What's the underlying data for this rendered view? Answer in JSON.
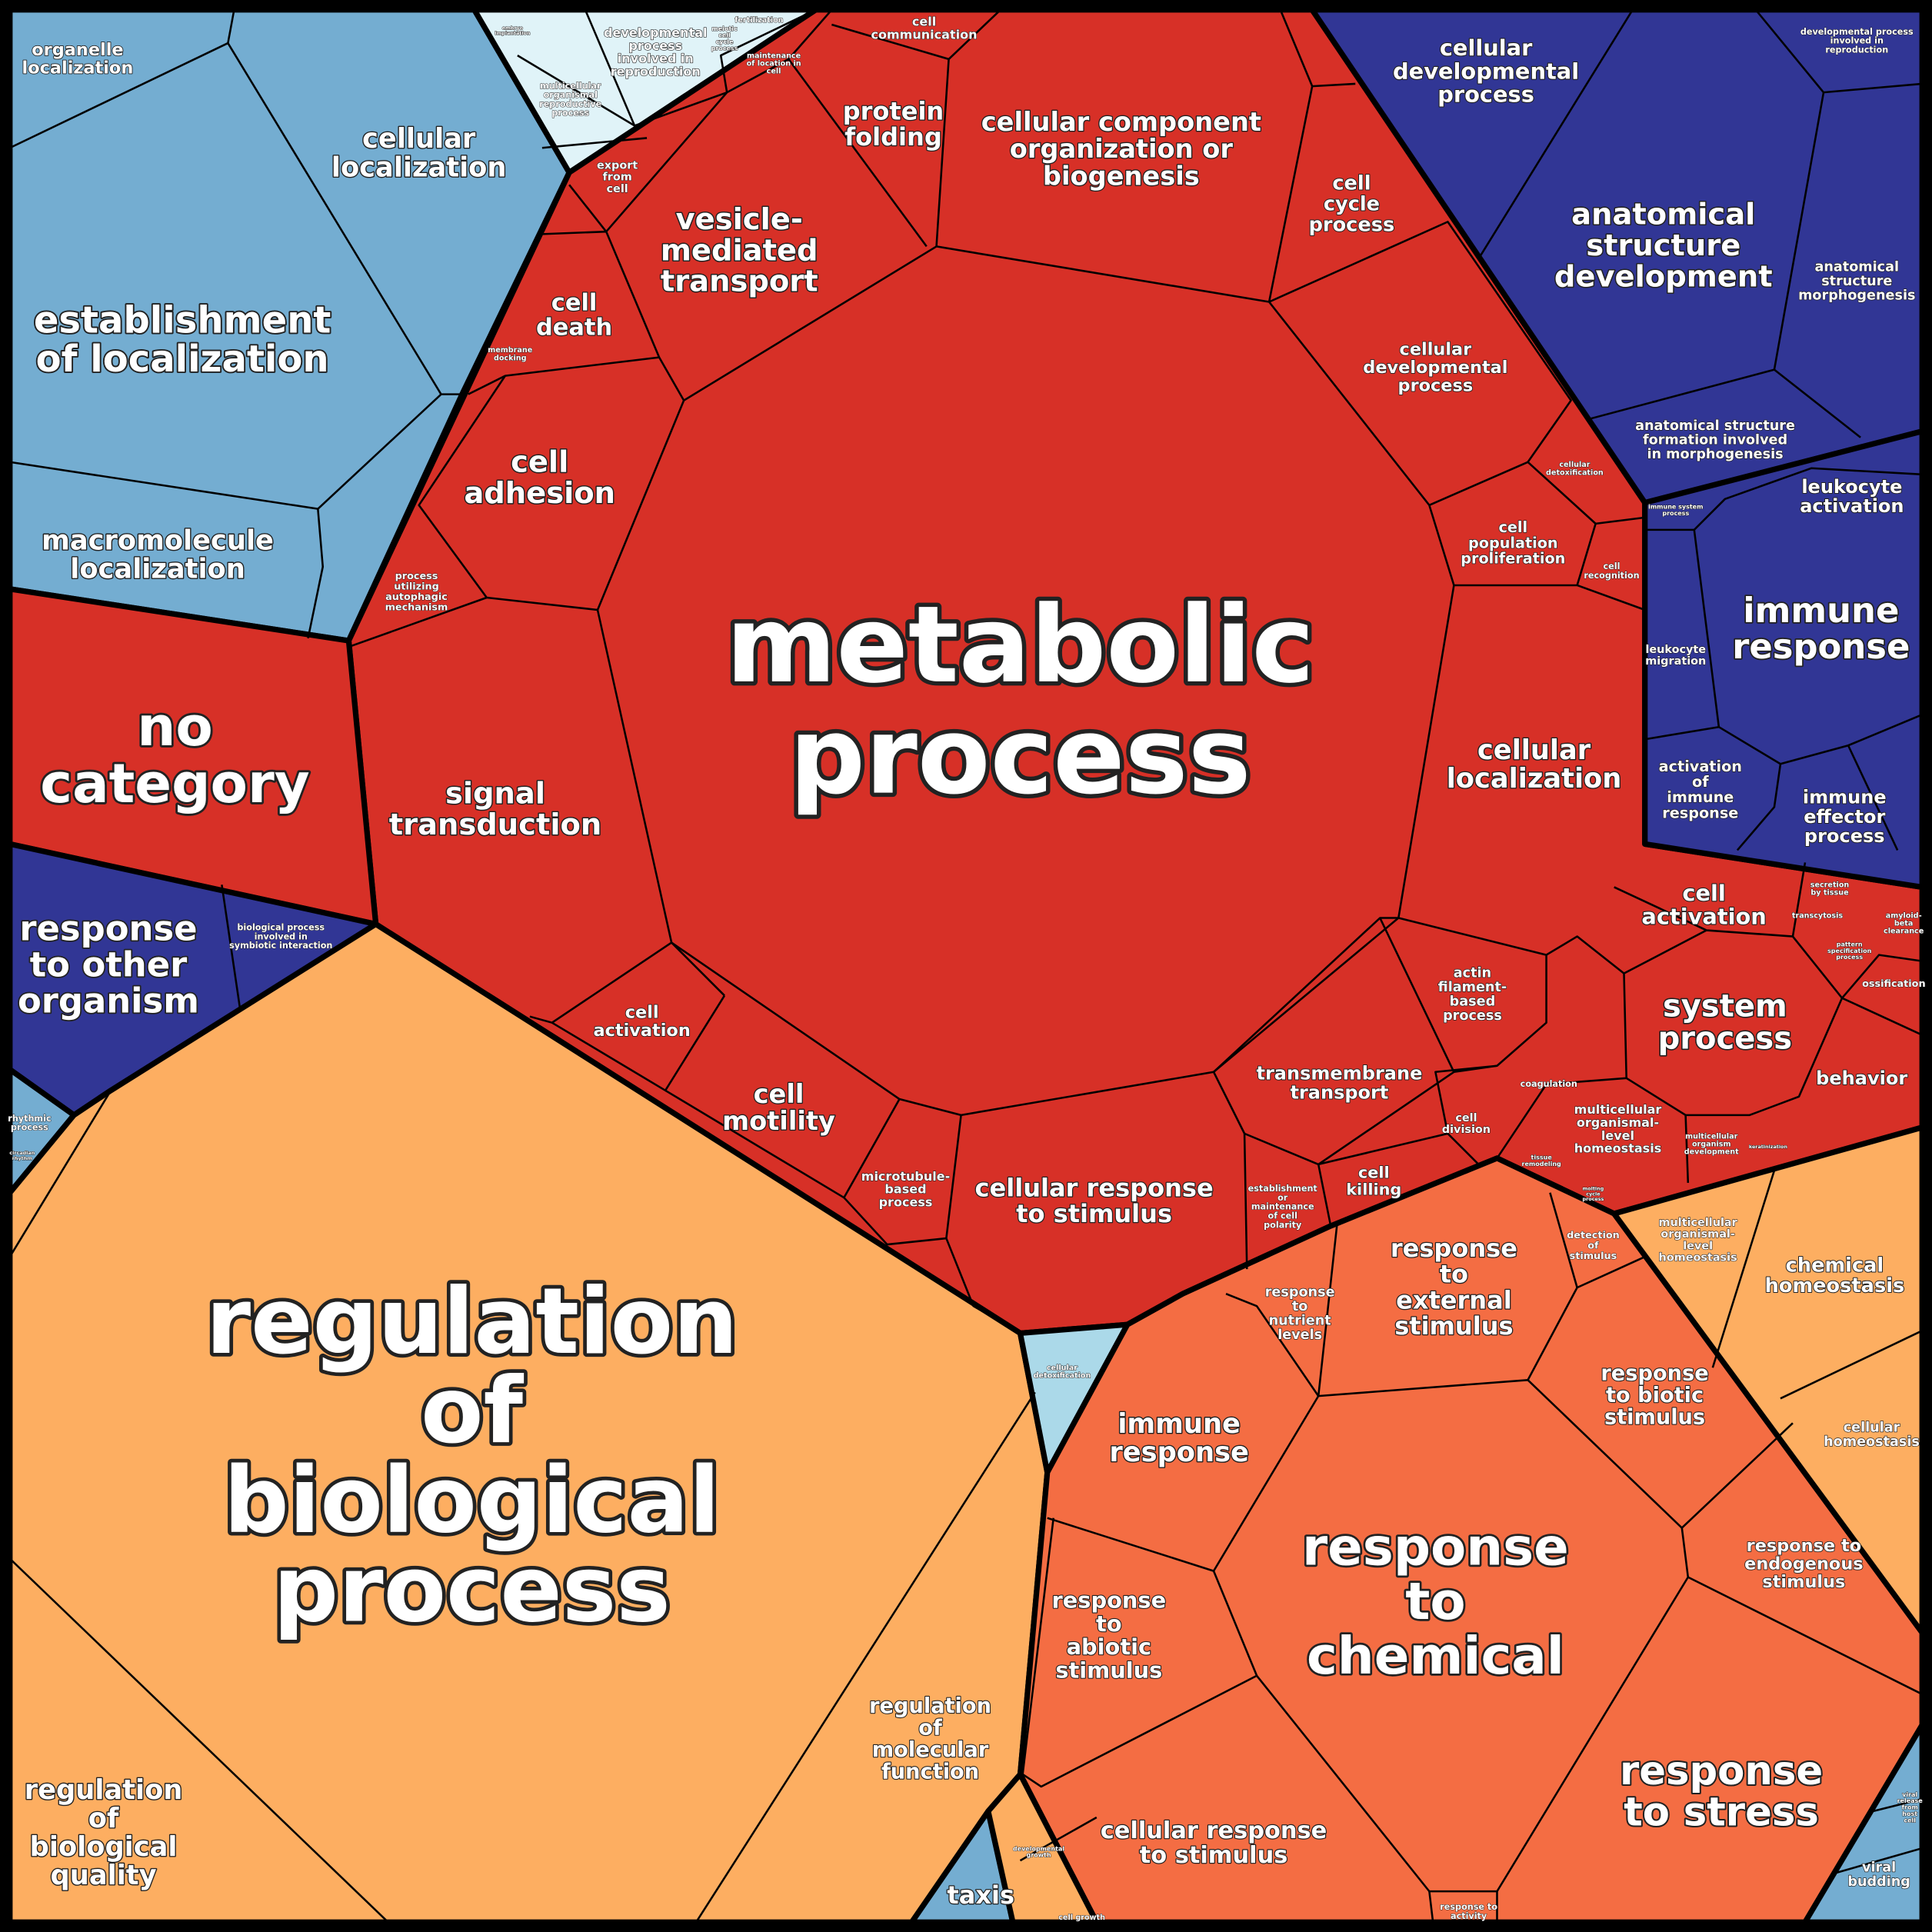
{
  "colors": {
    "localization_blue": "#74ADD1",
    "reproduction_pale": "#E0F3F8",
    "cellular_red": "#D73027",
    "developmental_navy": "#313695",
    "stimulus_orange": "#F46D43",
    "regulation_light_orange": "#FDAE61",
    "detox_light_blue": "#ABD9E9",
    "border": "#000000",
    "label": "#FFFFFF"
  },
  "cells": {
    "metabolic_process": [
      "metabolic",
      "process"
    ],
    "regulation_of_biological_process": [
      "regulation",
      "of",
      "biological",
      "process"
    ],
    "response_to_chemical": [
      "response",
      "to",
      "chemical"
    ],
    "no_category": [
      "no",
      "category"
    ],
    "establishment_of_localization": [
      "establishment",
      "of localization"
    ],
    "cellular_localization_blue": [
      "cellular",
      "localization"
    ],
    "organelle_localization": [
      "organelle",
      "localization"
    ],
    "macromolecule_localization": [
      "macromolecule",
      "localization"
    ],
    "vesicle_mediated_transport": [
      "vesicle-",
      "mediated",
      "transport"
    ],
    "cellular_component_organization": [
      "cellular component",
      "organization or",
      "biogenesis"
    ],
    "protein_folding": [
      "protein",
      "folding"
    ],
    "cell_cycle_process": [
      "cell",
      "cycle",
      "process"
    ],
    "cellular_developmental_process_red": [
      "cellular",
      "developmental",
      "process"
    ],
    "cell_population_proliferation": [
      "cell",
      "population",
      "proliferation"
    ],
    "cellular_localization_red": [
      "cellular",
      "localization"
    ],
    "cell_death": [
      "cell",
      "death"
    ],
    "cell_adhesion": [
      "cell",
      "adhesion"
    ],
    "signal_transduction": [
      "signal",
      "transduction"
    ],
    "cell_activation_small": [
      "cell",
      "activation"
    ],
    "cell_motility": [
      "cell",
      "motility"
    ],
    "microtubule_based_process": [
      "microtubule-",
      "based",
      "process"
    ],
    "cellular_response_to_stimulus_red": [
      "cellular response",
      "to stimulus"
    ],
    "transmembrane_transport": [
      "transmembrane",
      "transport"
    ],
    "cell_killing": [
      "cell",
      "killing"
    ],
    "actin_filament_based_process": [
      "actin",
      "filament-",
      "based",
      "process"
    ],
    "cell_division": [
      "cell",
      "division"
    ],
    "cell_polarity": [
      "establishment",
      "or",
      "maintenance",
      "of cell",
      "polarity"
    ],
    "export_from_cell": [
      "export",
      "from",
      "cell"
    ],
    "autophagic_mechanism": [
      "process",
      "utilizing",
      "autophagic",
      "mechanism"
    ],
    "cell_communication": [
      "cell",
      "communication"
    ],
    "maintenance_of_location_in_cell": [
      "maintenance",
      "of location in",
      "cell"
    ],
    "cell_recognition": [
      "cell",
      "recognition"
    ],
    "cellular_detoxification_red": [
      "cellular",
      "detoxification"
    ],
    "membrane_docking": [
      "membrane",
      "docking"
    ],
    "cellular_developmental_process_blue": [
      "cellular",
      "developmental",
      "process"
    ],
    "anatomical_structure_development": [
      "anatomical",
      "structure",
      "development"
    ],
    "anatomical_structure_morphogenesis": [
      "anatomical",
      "structure",
      "morphogenesis"
    ],
    "anatomical_structure_formation": [
      "anatomical structure",
      "formation involved",
      "in morphogenesis"
    ],
    "developmental_process_reproduction_navy": [
      "developmental process",
      "involved in",
      "reproduction"
    ],
    "leukocyte_activation": [
      "leukocyte",
      "activation"
    ],
    "immune_response_navy": [
      "immune",
      "response"
    ],
    "leukocyte_migration": [
      "leukocyte",
      "migration"
    ],
    "activation_of_immune_response": [
      "activation",
      "of",
      "immune",
      "response"
    ],
    "immune_effector_process": [
      "immune",
      "effector",
      "process"
    ],
    "immune_system_process": [
      "immune system",
      "process"
    ],
    "cell_activation_large": [
      "cell",
      "activation"
    ],
    "system_process": [
      "system",
      "process"
    ],
    "behavior": [
      "behavior"
    ],
    "ossification": [
      "ossification"
    ],
    "transcytosis": [
      "transcytosis"
    ],
    "pattern_specification_process": [
      "pattern",
      "specification",
      "process"
    ],
    "amyloid_beta_clearance": [
      "amyloid-",
      "beta",
      "clearance"
    ],
    "secretion_by_tissue": [
      "secretion",
      "by tissue"
    ],
    "multicellular_homeostasis_red": [
      "multicellular",
      "organismal-",
      "level",
      "homeostasis"
    ],
    "multicellular_organism_development": [
      "multicellular",
      "organism",
      "development"
    ],
    "coagulation": [
      "coagulation"
    ],
    "tissue_remodeling": [
      "tissue",
      "remodeling"
    ],
    "molting_cycle_process": [
      "molting",
      "cycle",
      "process"
    ],
    "keratinization": [
      "keratinization"
    ],
    "response_to_other_organism": [
      "response",
      "to other",
      "organism"
    ],
    "symbiotic_interaction": [
      "biological process",
      "involved in",
      "symbiotic interaction"
    ],
    "rhythmic_process": [
      "rhythmic",
      "process"
    ],
    "circadian_rhythm": [
      "circadian",
      "rhythm"
    ],
    "regulation_of_biological_quality": [
      "regulation",
      "of",
      "biological",
      "quality"
    ],
    "regulation_of_molecular_function": [
      "regulation",
      "of",
      "molecular",
      "function"
    ],
    "immune_response_orange": [
      "immune",
      "response"
    ],
    "response_to_abiotic_stimulus": [
      "response",
      "to",
      "abiotic",
      "stimulus"
    ],
    "cellular_response_to_stimulus_orange": [
      "cellular response",
      "to stimulus"
    ],
    "response_to_stress": [
      "response",
      "to stress"
    ],
    "response_to_endogenous_stimulus": [
      "response to",
      "endogenous",
      "stimulus"
    ],
    "response_to_biotic_stimulus": [
      "response",
      "to biotic",
      "stimulus"
    ],
    "response_to_external_stimulus": [
      "response",
      "to",
      "external",
      "stimulus"
    ],
    "response_to_nutrient_levels": [
      "response",
      "to",
      "nutrient",
      "levels"
    ],
    "detection_of_stimulus": [
      "detection",
      "of",
      "stimulus"
    ],
    "response_to_activity": [
      "response to",
      "activity"
    ],
    "chemical_homeostasis": [
      "chemical",
      "homeostasis"
    ],
    "cellular_homeostasis": [
      "cellular",
      "homeostasis"
    ],
    "multicellular_homeostasis_orange": [
      "multicellular",
      "organismal-",
      "level",
      "homeostasis"
    ],
    "taxis": [
      "taxis"
    ],
    "developmental_growth": [
      "developmental",
      "growth"
    ],
    "cell_growth": [
      "cell growth"
    ],
    "viral_budding": [
      "viral",
      "budding"
    ],
    "viral_release": [
      "viral",
      "release",
      "from",
      "host",
      "cell"
    ],
    "cellular_detoxification_blue": [
      "cellular",
      "detoxification"
    ],
    "developmental_process_reproduction_pale": [
      "developmental",
      "process",
      "involved in",
      "reproduction"
    ],
    "multicellular_reproductive_process": [
      "multicellular",
      "organismal",
      "reproductive",
      "process"
    ],
    "meiotic_cell_cycle_process": [
      "meiotic",
      "cell",
      "cycle",
      "process"
    ],
    "fertilization": [
      "fertilization"
    ],
    "embryo_implantation": [
      "embryo",
      "implantation"
    ]
  }
}
